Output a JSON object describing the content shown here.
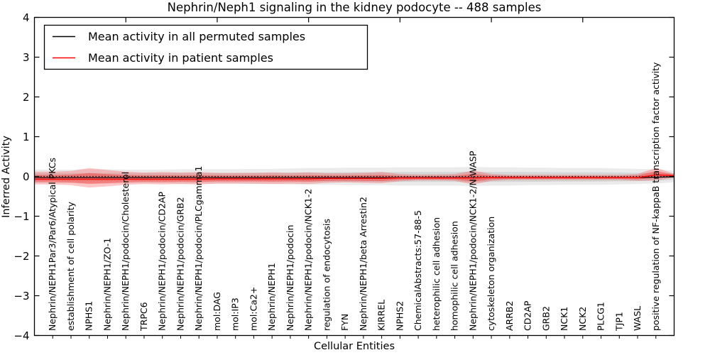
{
  "chart_data": {
    "type": "line",
    "title": "Nephrin/Neph1 signaling in the kidney podocyte -- 488 samples",
    "xlabel": "Cellular Entities",
    "ylabel": "Inferred Activity",
    "ylim": [
      -4,
      4
    ],
    "xlim": [
      0,
      35
    ],
    "yticks": [
      -4,
      -3,
      -2,
      -1,
      0,
      1,
      2,
      3,
      4
    ],
    "x_major_ticks": [
      5,
      10,
      15,
      20,
      25,
      30
    ],
    "grid": false,
    "legend_position": "upper left",
    "zero_line": {
      "value": 0,
      "style": "dotted",
      "color": "#000000"
    },
    "categories": [
      "Nephrin/NEPH1Par3/Par6/Atypical PKCs",
      "establishment of cell polarity",
      "NPHS1",
      "Nephrin/NEPH1/ZO-1",
      "Nephrin/NEPH1/podocin/Cholesterol",
      "TRPC6",
      "Nephrin/NEPH1/podocin/CD2AP",
      "Nephrin/NEPH1/podocin/GRB2",
      "Nephrin/NEPH1/podocin/PLCgamma1",
      "mol:DAG",
      "mol:IP3",
      "mol:Ca2+",
      "Nephrin/NEPH1",
      "Nephrin/NEPH1/podocin",
      "Nephrin/NEPH1/podocin/NCK1-2",
      "regulation of endocytosis",
      "FYN",
      "Nephrin/NEPH1/beta Arrestin2",
      "KIRREL",
      "NPHS2",
      "ChemicalAbstracts:57-88-5",
      "heterophilic cell adhesion",
      "homophilic cell adhesion",
      "Nephrin/NEPH1/podocin/NCK1-2/N-WASP",
      "cytoskeleton organization",
      "ARRB2",
      "CD2AP",
      "GRB2",
      "NCK1",
      "NCK2",
      "PLCG1",
      "TJP1",
      "WASL",
      "positive regulation of NF-kappaB transcription factor activity"
    ],
    "series": [
      {
        "name": "Mean activity in all permuted samples",
        "color": "#000000",
        "band_color": "#999999",
        "values": [
          -0.03,
          -0.03,
          -0.03,
          -0.03,
          -0.03,
          -0.03,
          -0.03,
          -0.03,
          -0.03,
          -0.03,
          -0.03,
          -0.03,
          -0.03,
          -0.03,
          -0.03,
          -0.03,
          -0.03,
          -0.03,
          -0.03,
          -0.03,
          -0.03,
          -0.03,
          -0.03,
          -0.03,
          -0.03,
          -0.03,
          -0.03,
          -0.03,
          -0.03,
          -0.03,
          -0.03,
          -0.03,
          -0.03,
          -0.02
        ],
        "band_upper": [
          0.17,
          0.17,
          0.18,
          0.18,
          0.17,
          0.17,
          0.17,
          0.18,
          0.18,
          0.18,
          0.18,
          0.19,
          0.19,
          0.2,
          0.21,
          0.21,
          0.22,
          0.22,
          0.22,
          0.23,
          0.23,
          0.23,
          0.23,
          0.24,
          0.23,
          0.23,
          0.22,
          0.22,
          0.21,
          0.21,
          0.21,
          0.2,
          0.19,
          0.18
        ],
        "band_lower": [
          -0.17,
          -0.17,
          -0.18,
          -0.18,
          -0.17,
          -0.17,
          -0.17,
          -0.18,
          -0.18,
          -0.18,
          -0.18,
          -0.19,
          -0.19,
          -0.2,
          -0.21,
          -0.21,
          -0.22,
          -0.22,
          -0.22,
          -0.23,
          -0.23,
          -0.23,
          -0.23,
          -0.24,
          -0.23,
          -0.23,
          -0.22,
          -0.22,
          -0.21,
          -0.21,
          -0.21,
          -0.2,
          -0.19,
          -0.18
        ]
      },
      {
        "name": "Mean activity in patient samples",
        "color": "#ff0000",
        "band_color": "#ff0000",
        "values": [
          -0.07,
          -0.07,
          -0.07,
          -0.07,
          -0.07,
          -0.07,
          -0.07,
          -0.07,
          -0.07,
          -0.06,
          -0.06,
          -0.06,
          -0.06,
          -0.06,
          -0.06,
          -0.05,
          -0.05,
          -0.05,
          -0.05,
          -0.04,
          -0.04,
          -0.04,
          -0.04,
          -0.04,
          -0.03,
          -0.03,
          -0.03,
          -0.03,
          -0.03,
          -0.03,
          -0.03,
          -0.03,
          -0.03,
          0.04
        ],
        "band_upper": [
          0.12,
          0.14,
          0.21,
          0.16,
          0.12,
          0.1,
          0.11,
          0.1,
          0.11,
          0.09,
          0.09,
          0.09,
          0.1,
          0.09,
          0.1,
          0.08,
          0.08,
          0.09,
          0.11,
          0.06,
          0.05,
          0.05,
          0.06,
          0.15,
          0.06,
          0.04,
          0.04,
          0.04,
          0.04,
          0.04,
          0.04,
          0.04,
          0.06,
          0.22
        ],
        "band_lower": [
          -0.2,
          -0.22,
          -0.28,
          -0.25,
          -0.21,
          -0.19,
          -0.2,
          -0.19,
          -0.2,
          -0.18,
          -0.18,
          -0.18,
          -0.19,
          -0.18,
          -0.19,
          -0.16,
          -0.15,
          -0.16,
          -0.17,
          -0.12,
          -0.1,
          -0.1,
          -0.11,
          -0.2,
          -0.11,
          -0.09,
          -0.09,
          -0.09,
          -0.09,
          -0.09,
          -0.09,
          -0.09,
          -0.11,
          -0.1
        ]
      }
    ]
  },
  "legend": {
    "entries": [
      {
        "label": "Mean activity in all permuted samples",
        "color": "#000000"
      },
      {
        "label": "Mean activity in patient samples",
        "color": "#ff0000"
      }
    ]
  }
}
